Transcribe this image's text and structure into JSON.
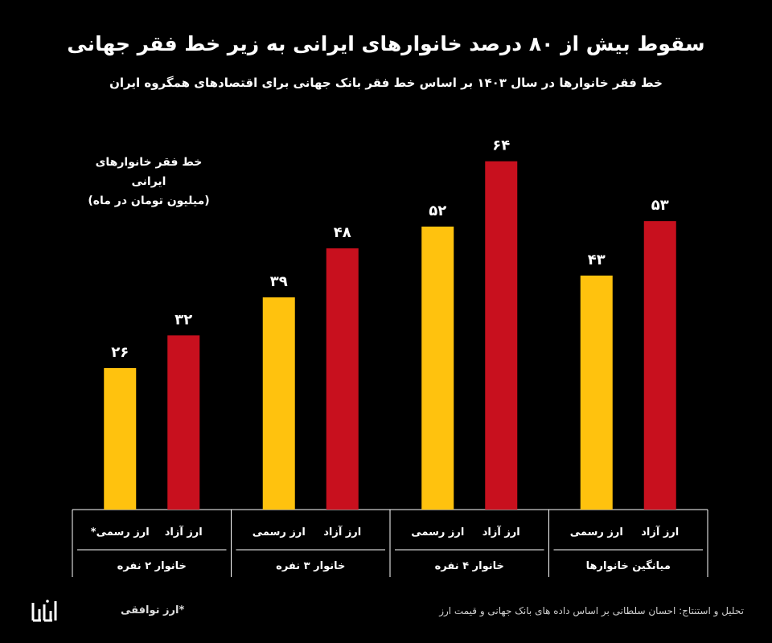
{
  "title": "سقوط بیش از ۸۰ درصد خانوارهای ایرانی به زیر خط فقر جهانی",
  "subtitle": "خط فقر خانوارها در سال ۱۴۰۳ بر اساس خط فقر بانک جهانی برای اقتصادهای همگروه ایران",
  "ylabel_line1": "خط فقر خانوارهای ایرانی",
  "ylabel_line2": "(میلیون تومان در ماه)",
  "footnote": "*ارز توافقی",
  "source": "تحلیل و استنتاج: احسان سلطانی بر اساس داده های بانک جهانی و قیمت ارز",
  "logo_text": "احسان سلطانی",
  "colors": {
    "official": "#FFC20E",
    "free": "#C8101E",
    "axis": "#ffffff"
  },
  "chart_data": {
    "type": "bar",
    "ylim": [
      0,
      70
    ],
    "groups": [
      {
        "label": "خانوار ۲ نفره",
        "bars": [
          {
            "category": "ارز رسمی*",
            "value": 26,
            "value_label": "۲۶",
            "color": "#FFC20E"
          },
          {
            "category": "ارز آزاد",
            "value": 32,
            "value_label": "۳۲",
            "color": "#C8101E"
          }
        ]
      },
      {
        "label": "خانوار ۳ نفره",
        "bars": [
          {
            "category": "ارز رسمی",
            "value": 39,
            "value_label": "۳۹",
            "color": "#FFC20E"
          },
          {
            "category": "ارز آزاد",
            "value": 48,
            "value_label": "۴۸",
            "color": "#C8101E"
          }
        ]
      },
      {
        "label": "خانوار ۴ نفره",
        "bars": [
          {
            "category": "ارز رسمی",
            "value": 52,
            "value_label": "۵۲",
            "color": "#FFC20E"
          },
          {
            "category": "ارز آزاد",
            "value": 64,
            "value_label": "۶۴",
            "color": "#C8101E"
          }
        ]
      },
      {
        "label": "میانگین خانوارها",
        "bars": [
          {
            "category": "ارز رسمی",
            "value": 43,
            "value_label": "۴۳",
            "color": "#FFC20E"
          },
          {
            "category": "ارز آزاد",
            "value": 53,
            "value_label": "۵۳",
            "color": "#C8101E"
          }
        ]
      }
    ]
  }
}
